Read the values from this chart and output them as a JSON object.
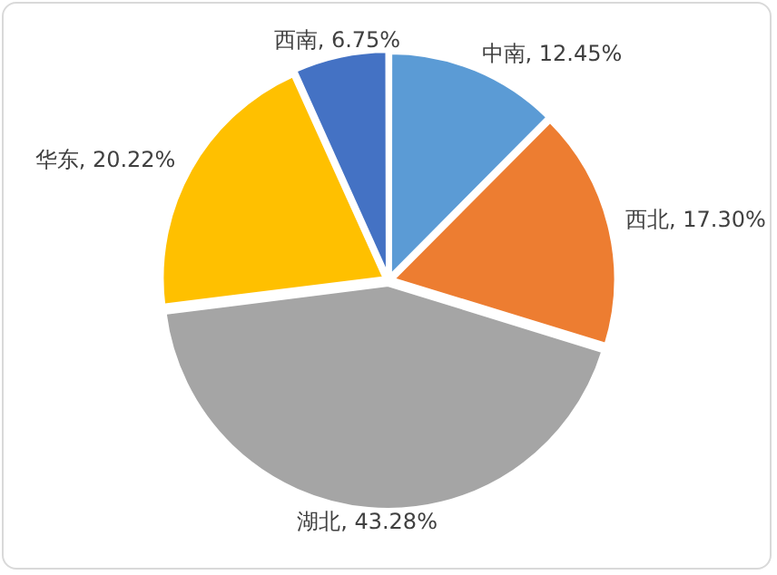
{
  "chart_data": {
    "type": "pie",
    "categories": [
      "中南",
      "西北",
      "湖北",
      "华东",
      "西南"
    ],
    "values": [
      12.45,
      17.3,
      43.28,
      20.22,
      6.75
    ],
    "colors": [
      "#5b9bd5",
      "#ed7d31",
      "#a5a5a5",
      "#ffc000",
      "#4472c4"
    ],
    "value_labels": [
      "12.45%",
      "17.30%",
      "43.28%",
      "20.22%",
      "6.75%"
    ],
    "legend": false
  }
}
